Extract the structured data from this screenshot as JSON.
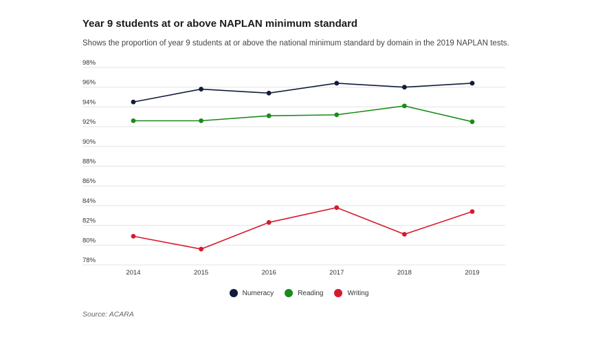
{
  "header": {
    "title": "Year 9 students at or above NAPLAN minimum standard",
    "subtitle": "Shows the proportion of year 9 students at or above the national minimum standard by domain in the 2019 NAPLAN tests."
  },
  "source": "Source: ACARA",
  "chart_data": {
    "type": "line",
    "title": "Year 9 students at or above NAPLAN minimum standard",
    "x": [
      "2014",
      "2015",
      "2016",
      "2017",
      "2018",
      "2019"
    ],
    "ylim": [
      78,
      98
    ],
    "yticks": [
      78,
      80,
      82,
      84,
      86,
      88,
      90,
      92,
      94,
      96,
      98
    ],
    "ytick_labels": [
      "78%",
      "80%",
      "82%",
      "84%",
      "86%",
      "88%",
      "90%",
      "92%",
      "94%",
      "96%",
      "98%"
    ],
    "grid": true,
    "legend_position": "bottom-center",
    "series": [
      {
        "name": "Numeracy",
        "color": "#111c3a",
        "values": [
          94.5,
          95.8,
          95.4,
          96.4,
          96.0,
          96.4
        ]
      },
      {
        "name": "Reading",
        "color": "#1a8a1a",
        "values": [
          92.6,
          92.6,
          93.1,
          93.2,
          94.1,
          92.5
        ]
      },
      {
        "name": "Writing",
        "color": "#d7192f",
        "values": [
          80.9,
          79.6,
          82.3,
          83.8,
          81.1,
          83.4
        ]
      }
    ]
  }
}
